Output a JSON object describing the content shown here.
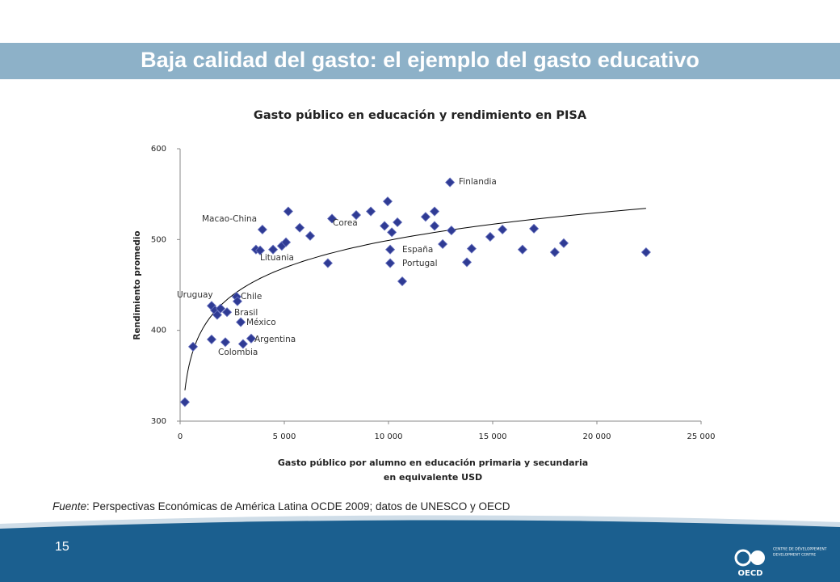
{
  "header": {
    "title": "Baja calidad del gasto: el ejemplo del gasto educativo"
  },
  "chart_data": {
    "type": "scatter",
    "title": "Gasto público en educación y rendimiento en PISA",
    "x_label": [
      "Gasto público por alumno en educación primaria y secundaria",
      "en equivalente USD"
    ],
    "y_label": "Rendimiento promedio",
    "color": "#2f3b94",
    "trendline": "logarithmic",
    "x": [
      230,
      620,
      1510,
      1510,
      1670,
      1780,
      1940,
      2170,
      2250,
      2710,
      2750,
      2910,
      3020,
      3410,
      3640,
      3840,
      3950,
      4460,
      4880,
      5080,
      5190,
      5740,
      6240,
      7090,
      7290,
      8450,
      9150,
      9810,
      9960,
      10080,
      10080,
      10160,
      10430,
      10660,
      11780,
      12210,
      12210,
      12600,
      12950,
      13020,
      13760,
      13990,
      14880,
      15470,
      16430,
      16980,
      17980,
      18410,
      22360
    ],
    "y": [
      321,
      382,
      390,
      427,
      422,
      417,
      424,
      387,
      420,
      437,
      432,
      409,
      385,
      391,
      489,
      488,
      511,
      489,
      493,
      497,
      531,
      513,
      504,
      474,
      523,
      527,
      531,
      515,
      542,
      489,
      474,
      508,
      519,
      454,
      525,
      515,
      531,
      495,
      563,
      510,
      475,
      490,
      503,
      511,
      489,
      512,
      486,
      496,
      486
    ],
    "annotations": [
      "Finlandia",
      "Macao-China",
      "Corea",
      "España",
      "Portugal",
      "Lituania",
      "Uruguay",
      "Chile",
      "Brasil",
      "México",
      "Argentina",
      "Colombia"
    ],
    "xlim": [
      0,
      25000
    ],
    "ylim": [
      300,
      600
    ],
    "xticks": [
      0,
      {
        "value": 5000,
        "label": "5 000"
      },
      {
        "value": 10000,
        "label": "10 000"
      },
      {
        "value": 15000,
        "label": "15 000"
      },
      {
        "value": 20000,
        "label": "20 000"
      },
      {
        "value": 25000,
        "label": "25 000"
      }
    ],
    "yticks": [
      300,
      400,
      500,
      600
    ],
    "grid": false
  },
  "footer": {
    "source_label": "Fuente",
    "source_text": ": Perspectivas Económicas de América Latina OCDE 2009; datos de UNESCO y OECD",
    "page": "15",
    "logo": "OECD",
    "logo_fr": "CENTRE DE DÉVELOPPEMENT",
    "logo_en": "DEVELOPMENT CENTRE"
  }
}
